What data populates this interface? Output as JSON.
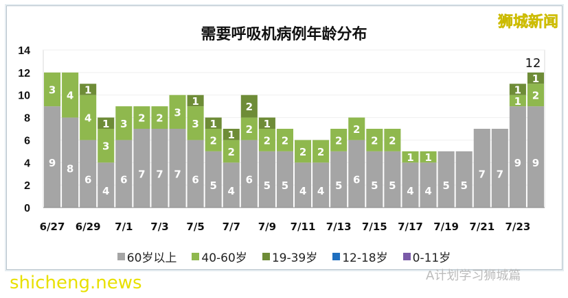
{
  "chart_data": {
    "type": "bar",
    "stacked": true,
    "title": "需要呼吸机病例年龄分布",
    "categories": [
      "6/27",
      "6/28",
      "6/29",
      "6/30",
      "7/1",
      "7/2",
      "7/3",
      "7/4",
      "7/5",
      "7/6",
      "7/7",
      "7/8",
      "7/9",
      "7/10",
      "7/11",
      "7/12",
      "7/13",
      "7/14",
      "7/15",
      "7/16",
      "7/17",
      "7/18",
      "7/19",
      "7/20",
      "7/21",
      "7/22",
      "7/23",
      "7/24"
    ],
    "tick_labels": [
      "6/27",
      "6/29",
      "7/1",
      "7/3",
      "7/5",
      "7/7",
      "7/9",
      "7/11",
      "7/13",
      "7/15",
      "7/17",
      "7/19",
      "7/21",
      "7/23"
    ],
    "yticks": [
      0,
      2,
      4,
      6,
      8,
      10,
      12,
      14
    ],
    "ylim": [
      0,
      14
    ],
    "grid": true,
    "legend_position": "bottom",
    "series": [
      {
        "name": "60岁以上",
        "color": "#a5a5a5",
        "values": [
          9,
          8,
          6,
          4,
          6,
          7,
          7,
          7,
          6,
          5,
          4,
          6,
          5,
          5,
          4,
          4,
          5,
          6,
          5,
          5,
          4,
          4,
          5,
          5,
          7,
          7,
          9,
          9
        ]
      },
      {
        "name": "40-60岁",
        "color": "#8fb84e",
        "values": [
          3,
          4,
          4,
          3,
          3,
          2,
          2,
          3,
          3,
          2,
          2,
          2,
          2,
          2,
          2,
          2,
          2,
          2,
          2,
          2,
          1,
          1,
          0,
          0,
          0,
          0,
          1,
          2
        ]
      },
      {
        "name": "19-39岁",
        "color": "#6e8c37",
        "values": [
          0,
          0,
          1,
          1,
          0,
          0,
          0,
          0,
          1,
          1,
          1,
          2,
          1,
          0,
          0,
          0,
          0,
          0,
          0,
          0,
          0,
          0,
          0,
          0,
          0,
          0,
          1,
          1
        ]
      },
      {
        "name": "12-18岁",
        "color": "#1f6fbf",
        "values": [
          0,
          0,
          0,
          0,
          0,
          0,
          0,
          0,
          0,
          0,
          0,
          0,
          0,
          0,
          0,
          0,
          0,
          0,
          0,
          0,
          0,
          0,
          0,
          0,
          0,
          0,
          0,
          0
        ]
      },
      {
        "name": "0-11岁",
        "color": "#7a5aa8",
        "values": [
          0,
          0,
          0,
          0,
          0,
          0,
          0,
          0,
          0,
          0,
          0,
          0,
          0,
          0,
          0,
          0,
          0,
          0,
          0,
          0,
          0,
          0,
          0,
          0,
          0,
          0,
          0,
          0
        ]
      }
    ],
    "annotations": [
      {
        "category": "7/24",
        "text": "12"
      }
    ]
  },
  "watermarks": {
    "top_right": "狮城新闻",
    "bottom_left": "shicheng.news",
    "bottom_right": "A计划学习狮城篇"
  }
}
